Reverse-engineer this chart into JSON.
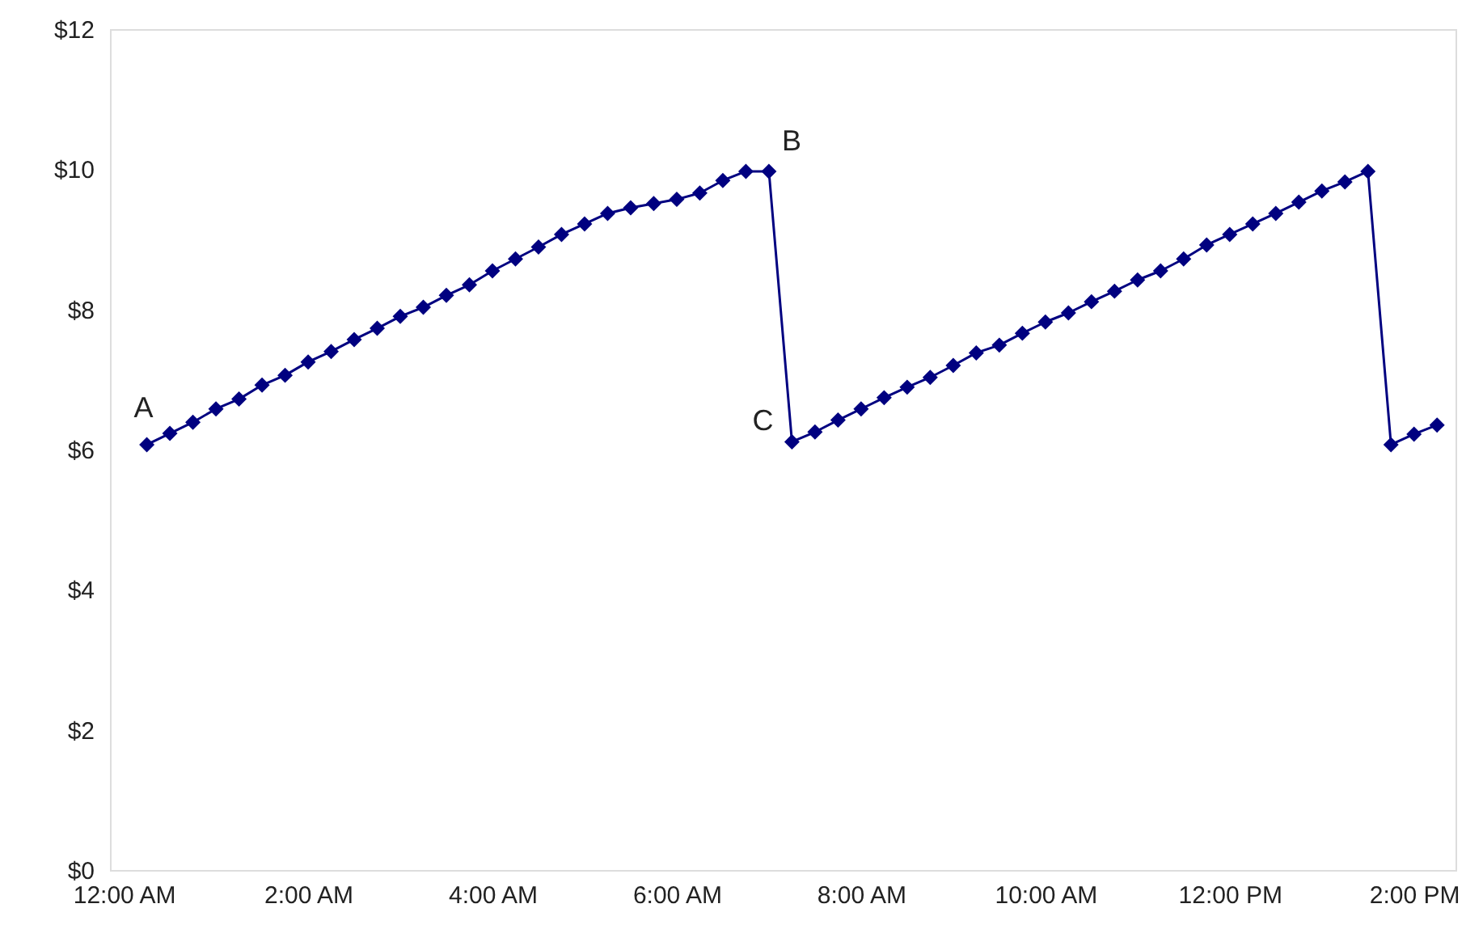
{
  "chart_data": {
    "type": "line",
    "x": [
      0.25,
      0.5,
      0.75,
      1.0,
      1.25,
      1.5,
      1.75,
      2.0,
      2.25,
      2.5,
      2.75,
      3.0,
      3.25,
      3.5,
      3.75,
      4.0,
      4.25,
      4.5,
      4.75,
      5.0,
      5.25,
      5.5,
      5.75,
      6.0,
      6.25,
      6.5,
      6.75,
      7.0,
      7.25,
      7.5,
      7.75,
      8.0,
      8.25,
      8.5,
      8.75,
      9.0,
      9.25,
      9.5,
      9.75,
      10.0,
      10.25,
      10.5,
      10.75,
      11.0,
      11.25,
      11.5,
      11.75,
      12.0,
      12.25,
      12.5,
      12.75,
      13.0,
      13.25,
      13.5,
      13.75,
      14.0,
      14.25
    ],
    "series": [
      {
        "color": "#000080",
        "values": [
          6.07,
          6.23,
          6.39,
          6.58,
          6.72,
          6.92,
          7.06,
          7.25,
          7.4,
          7.57,
          7.73,
          7.9,
          8.03,
          8.2,
          8.35,
          8.55,
          8.72,
          8.89,
          9.07,
          9.22,
          9.37,
          9.45,
          9.51,
          9.57,
          9.66,
          9.84,
          9.97,
          9.97,
          6.11,
          6.25,
          6.42,
          6.58,
          6.74,
          6.89,
          7.03,
          7.2,
          7.38,
          7.49,
          7.66,
          7.82,
          7.95,
          8.11,
          8.26,
          8.42,
          8.55,
          8.72,
          8.92,
          9.07,
          9.22,
          9.37,
          9.53,
          9.69,
          9.82,
          9.97,
          6.07,
          6.22,
          6.35
        ]
      }
    ],
    "xlim": [
      -0.15,
      14.45
    ],
    "xticks": [
      {
        "value": 0,
        "label": "12:00 AM"
      },
      {
        "value": 2,
        "label": "2:00 AM"
      },
      {
        "value": 4,
        "label": "4:00 AM"
      },
      {
        "value": 6,
        "label": "6:00 AM"
      },
      {
        "value": 8,
        "label": "8:00 AM"
      },
      {
        "value": 10,
        "label": "10:00 AM"
      },
      {
        "value": 12,
        "label": "12:00 PM"
      },
      {
        "value": 14,
        "label": "2:00 PM"
      }
    ],
    "ylim": [
      0,
      12
    ],
    "yticks": [
      {
        "value": 0,
        "label": "$0"
      },
      {
        "value": 2,
        "label": "$2"
      },
      {
        "value": 4,
        "label": "$4"
      },
      {
        "value": 6,
        "label": "$6"
      },
      {
        "value": 8,
        "label": "$8"
      },
      {
        "value": 10,
        "label": "$10"
      },
      {
        "value": 12,
        "label": "$12"
      }
    ],
    "annotations": [
      {
        "text": "A",
        "x": 0.25,
        "y": 6.07
      },
      {
        "text": "B",
        "x": 7.0,
        "y": 9.97
      },
      {
        "text": "C",
        "x": 7.25,
        "y": 6.11
      }
    ],
    "marker": "diamond",
    "grid": false
  }
}
